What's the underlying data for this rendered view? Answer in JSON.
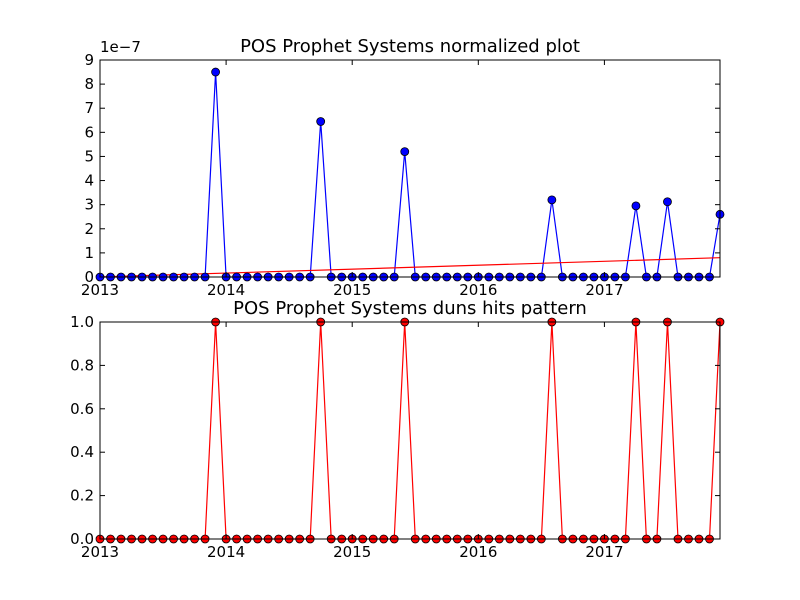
{
  "chart_data": [
    {
      "type": "line",
      "title": "POS Prophet Systems normalized plot",
      "xlabel": "",
      "ylabel": "",
      "y_offset_label": "1e−7",
      "x_tick_labels": [
        "2013",
        "2014",
        "2015",
        "2016",
        "2017"
      ],
      "y_tick_labels": [
        "0",
        "1",
        "2",
        "3",
        "4",
        "5",
        "6",
        "7",
        "8",
        "9"
      ],
      "xlim": [
        "2013-01",
        "2017-12"
      ],
      "ylim": [
        0,
        9
      ],
      "y_scale": 1e-07,
      "grid": false,
      "series": [
        {
          "color": "#0000ff",
          "marker_color": "#0000ff",
          "x": [
            "2013-01",
            "2013-02",
            "2013-03",
            "2013-04",
            "2013-05",
            "2013-06",
            "2013-07",
            "2013-08",
            "2013-09",
            "2013-10",
            "2013-11",
            "2013-12",
            "2014-01",
            "2014-02",
            "2014-03",
            "2014-04",
            "2014-05",
            "2014-06",
            "2014-07",
            "2014-08",
            "2014-09",
            "2014-10",
            "2014-11",
            "2014-12",
            "2015-01",
            "2015-02",
            "2015-03",
            "2015-04",
            "2015-05",
            "2015-06",
            "2015-07",
            "2015-08",
            "2015-09",
            "2015-10",
            "2015-11",
            "2015-12",
            "2016-01",
            "2016-02",
            "2016-03",
            "2016-04",
            "2016-05",
            "2016-06",
            "2016-07",
            "2016-08",
            "2016-09",
            "2016-10",
            "2016-11",
            "2016-12",
            "2017-01",
            "2017-02",
            "2017-03",
            "2017-04",
            "2017-05",
            "2017-06",
            "2017-07",
            "2017-08",
            "2017-09",
            "2017-10",
            "2017-11",
            "2017-12"
          ],
          "y": [
            0,
            0,
            0,
            0,
            0,
            0,
            0,
            0,
            0,
            0,
            0,
            8.5,
            0,
            0,
            0,
            0,
            0,
            0,
            0,
            0,
            0,
            6.45,
            0,
            0,
            0,
            0,
            0,
            0,
            0,
            5.2,
            0,
            0,
            0,
            0,
            0,
            0,
            0,
            0,
            0,
            0,
            0,
            0,
            0,
            3.2,
            0,
            0,
            0,
            0,
            0,
            0,
            0,
            2.95,
            0,
            0,
            3.12,
            0,
            0,
            0,
            0,
            2.6
          ]
        },
        {
          "color": "#ff0000",
          "marker": "none",
          "x": [
            "2013-01",
            "2017-12"
          ],
          "y": [
            0,
            0.8
          ]
        }
      ]
    },
    {
      "type": "line",
      "title": "POS Prophet Systems duns hits pattern",
      "xlabel": "",
      "ylabel": "",
      "x_tick_labels": [
        "2013",
        "2014",
        "2015",
        "2016",
        "2017"
      ],
      "y_tick_labels": [
        "0.0",
        "0.2",
        "0.4",
        "0.6",
        "0.8",
        "1.0"
      ],
      "xlim": [
        "2013-01",
        "2017-12"
      ],
      "ylim": [
        0,
        1
      ],
      "grid": false,
      "series": [
        {
          "color": "#ff0000",
          "marker_color": "#ff0000",
          "x": [
            "2013-01",
            "2013-02",
            "2013-03",
            "2013-04",
            "2013-05",
            "2013-06",
            "2013-07",
            "2013-08",
            "2013-09",
            "2013-10",
            "2013-11",
            "2013-12",
            "2014-01",
            "2014-02",
            "2014-03",
            "2014-04",
            "2014-05",
            "2014-06",
            "2014-07",
            "2014-08",
            "2014-09",
            "2014-10",
            "2014-11",
            "2014-12",
            "2015-01",
            "2015-02",
            "2015-03",
            "2015-04",
            "2015-05",
            "2015-06",
            "2015-07",
            "2015-08",
            "2015-09",
            "2015-10",
            "2015-11",
            "2015-12",
            "2016-01",
            "2016-02",
            "2016-03",
            "2016-04",
            "2016-05",
            "2016-06",
            "2016-07",
            "2016-08",
            "2016-09",
            "2016-10",
            "2016-11",
            "2016-12",
            "2017-01",
            "2017-02",
            "2017-03",
            "2017-04",
            "2017-05",
            "2017-06",
            "2017-07",
            "2017-08",
            "2017-09",
            "2017-10",
            "2017-11",
            "2017-12"
          ],
          "y": [
            0,
            0,
            0,
            0,
            0,
            0,
            0,
            0,
            0,
            0,
            0,
            1,
            0,
            0,
            0,
            0,
            0,
            0,
            0,
            0,
            0,
            1,
            0,
            0,
            0,
            0,
            0,
            0,
            0,
            1,
            0,
            0,
            0,
            0,
            0,
            0,
            0,
            0,
            0,
            0,
            0,
            0,
            0,
            1,
            0,
            0,
            0,
            0,
            0,
            0,
            0,
            1,
            0,
            0,
            1,
            0,
            0,
            0,
            0,
            1
          ]
        }
      ]
    }
  ]
}
